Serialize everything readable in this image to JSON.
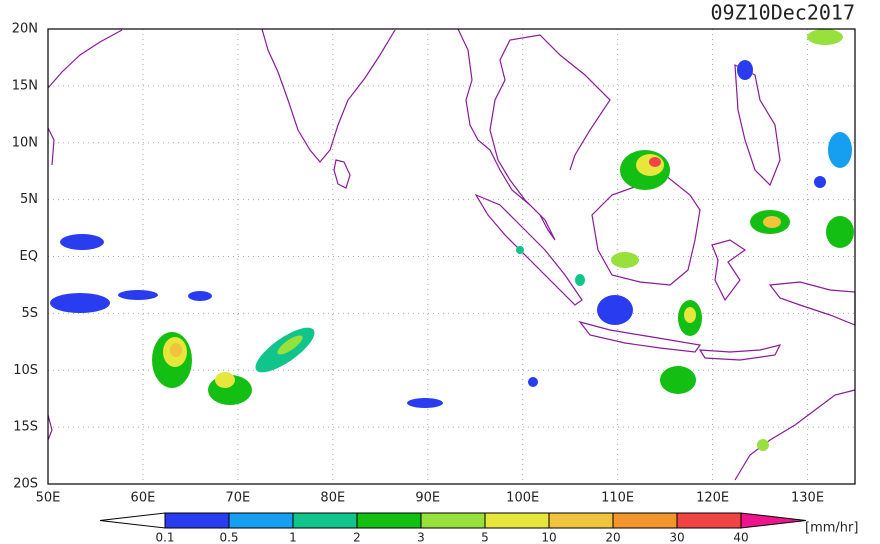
{
  "title": "09Z10Dec2017",
  "lon_labels": [
    "50E",
    "60E",
    "70E",
    "80E",
    "90E",
    "100E",
    "110E",
    "120E",
    "130E"
  ],
  "lat_labels": [
    "20N",
    "15N",
    "10N",
    "5N",
    "EQ",
    "5S",
    "10S",
    "15S",
    "20S"
  ],
  "colorbar": {
    "levels": [
      0.1,
      0.5,
      1,
      2,
      3,
      5,
      10,
      20,
      30,
      40
    ],
    "colors": [
      "#ffffff",
      "#2a3cf0",
      "#169ef0",
      "#10c48c",
      "#12bf12",
      "#98e03c",
      "#e6e63c",
      "#f0c43c",
      "#f0962c",
      "#f04444",
      "#f0148c"
    ],
    "unit": "[mm/hr]"
  }
}
